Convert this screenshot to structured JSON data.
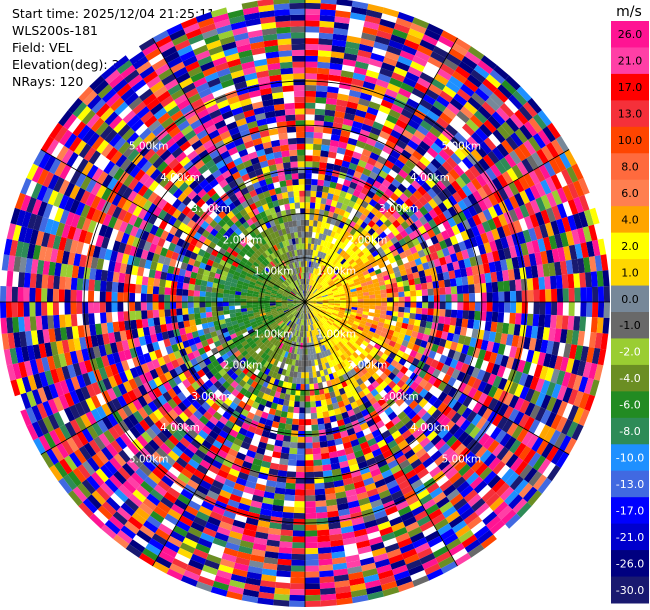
{
  "info": {
    "start_time": "Start time: 2025/12/04 21:25:11",
    "instrument": "WLS200s-181",
    "field": "Field: VEL",
    "elevation": "Elevation(deg): 35.00",
    "nrays": "NRays: 120"
  },
  "chart_data": {
    "type": "heatmap",
    "projection": "polar-ppi",
    "field": "VEL",
    "units": "m/s",
    "nrays": 120,
    "ring_labels": [
      "1.00km",
      "2.00km",
      "3.00km",
      "4.00km",
      "5.00km"
    ],
    "rings_km": [
      1,
      2,
      3,
      4,
      5
    ],
    "max_range_km": 6.9,
    "grid": true,
    "colorbar": {
      "position": "right",
      "min": -30,
      "max": 30,
      "tick_labels": [
        "26.0",
        "21.0",
        "17.0",
        "13.0",
        "10.0",
        "8.0",
        "6.0",
        "4.0",
        "2.0",
        "1.0",
        "0.0",
        "-1.0",
        "-2.0",
        "-4.0",
        "-6.0",
        "-8.0",
        "-10.0",
        "-13.0",
        "-17.0",
        "-21.0",
        "-26.0",
        "-30.0"
      ],
      "bins": [
        {
          "lo": 26,
          "hi": 30,
          "color": "#ff1493"
        },
        {
          "lo": 21,
          "hi": 26,
          "color": "#ff3fa6"
        },
        {
          "lo": 17,
          "hi": 21,
          "color": "#ff0000"
        },
        {
          "lo": 13,
          "hi": 17,
          "color": "#f5303a"
        },
        {
          "lo": 10,
          "hi": 13,
          "color": "#ff4500"
        },
        {
          "lo": 8,
          "hi": 10,
          "color": "#ff6a3d"
        },
        {
          "lo": 6,
          "hi": 8,
          "color": "#ff7f50"
        },
        {
          "lo": 4,
          "hi": 6,
          "color": "#ffa500"
        },
        {
          "lo": 2,
          "hi": 4,
          "color": "#ffff00"
        },
        {
          "lo": 1,
          "hi": 2,
          "color": "#ffd700"
        },
        {
          "lo": 0,
          "hi": 1,
          "color": "#778899"
        },
        {
          "lo": -1,
          "hi": 0,
          "color": "#696969"
        },
        {
          "lo": -2,
          "hi": -1,
          "color": "#9acd32"
        },
        {
          "lo": -4,
          "hi": -2,
          "color": "#6b8e23"
        },
        {
          "lo": -6,
          "hi": -4,
          "color": "#228b22"
        },
        {
          "lo": -8,
          "hi": -6,
          "color": "#2e8b57"
        },
        {
          "lo": -10,
          "hi": -8,
          "color": "#1e90ff"
        },
        {
          "lo": -13,
          "hi": -10,
          "color": "#4169e1"
        },
        {
          "lo": -17,
          "hi": -13,
          "color": "#0000ff"
        },
        {
          "lo": -21,
          "hi": -17,
          "color": "#0000cd"
        },
        {
          "lo": -26,
          "hi": -21,
          "color": "#000080"
        },
        {
          "lo": -30,
          "hi": -26,
          "color": "#191970"
        }
      ]
    }
  }
}
